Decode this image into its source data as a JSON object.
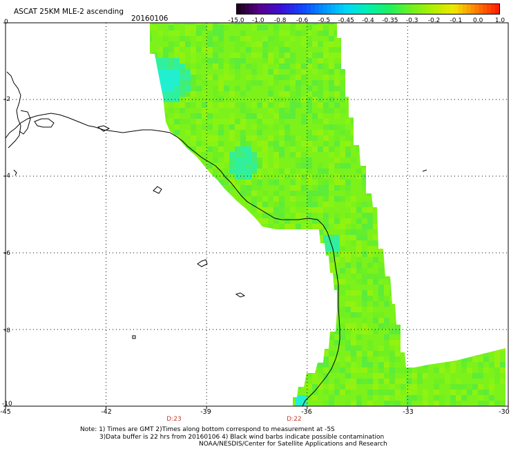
{
  "title": "ASCAT 25KM MLE-2 ascending",
  "date": "20160106",
  "colorbar": {
    "labels": [
      "-15.0",
      "-1.0",
      "-0.8",
      "-0.6",
      "-0.5",
      "-0.45",
      "-0.4",
      "-0.35",
      "-0.3",
      "-0.2",
      "-0.1",
      "0.0",
      "1.0"
    ],
    "colors": [
      "#200020",
      "#5a0090",
      "#3a10d8",
      "#1048ff",
      "#0098ff",
      "#00d8f8",
      "#00f0b0",
      "#20f060",
      "#70f020",
      "#b0f000",
      "#f0e800",
      "#ff8000",
      "#ff2000"
    ]
  },
  "axes": {
    "x_labels": [
      "-45",
      "-42",
      "-39",
      "-36",
      "-33",
      "-30"
    ],
    "y_labels": [
      "0",
      "-2",
      "-4",
      "-6",
      "-8",
      "-10"
    ]
  },
  "time_marks": [
    "D:23",
    "D:22"
  ],
  "notes": [
    "Note: 1) Times are GMT 2)Times along bottom correspond to measurement at -5S",
    "3)Data buffer is 22 hrs from 20160106 4) Black wind barbs indicate possible contamination",
    "NOAA/NESDIS/Center for Satellite Applications and Research"
  ],
  "colors": {
    "swath_main": "#7cf21a",
    "swath_alt": "#5cec3a",
    "swath_cyan": "#20f0d0",
    "time_marks": "#c0392b"
  }
}
